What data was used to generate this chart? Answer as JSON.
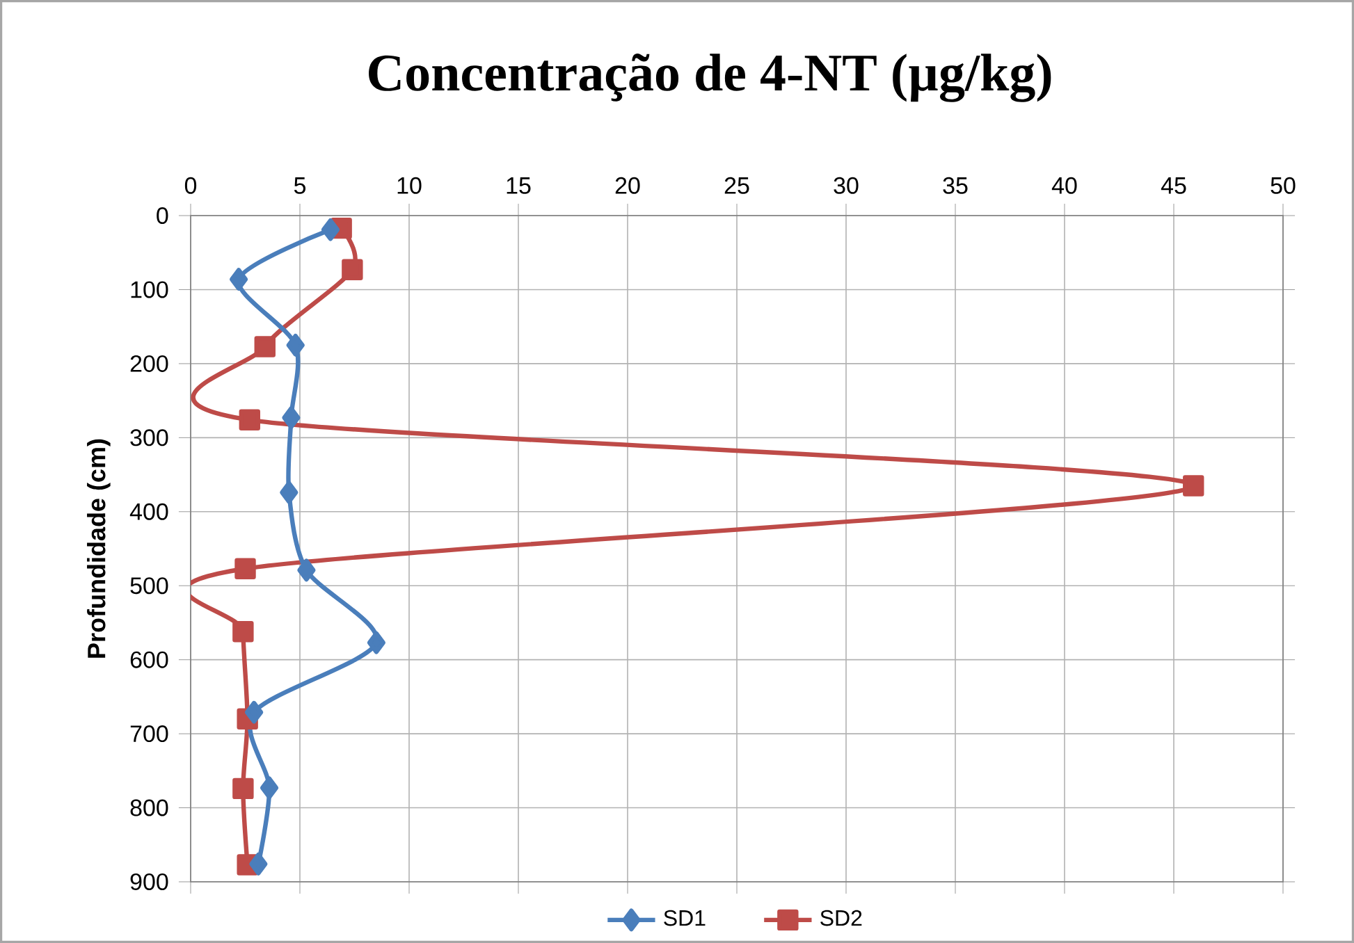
{
  "chart_data": {
    "type": "line",
    "title": "Concentração de 4-NT (µg/kg)",
    "ylabel": "Profundidade (cm)",
    "xlim": [
      0,
      50
    ],
    "xticks": [
      0,
      5,
      10,
      15,
      20,
      25,
      30,
      35,
      40,
      45,
      50
    ],
    "ylim": [
      900,
      0
    ],
    "yticks": [
      0,
      100,
      200,
      300,
      400,
      500,
      600,
      700,
      800,
      900
    ],
    "grid": true,
    "legend": "bottom",
    "series": [
      {
        "name": "SD1",
        "color": "#4a7ebb",
        "marker": "diamond",
        "x": [
          6.4,
          2.2,
          4.8,
          4.6,
          4.5,
          5.3,
          8.5,
          2.9,
          3.6,
          3.1
        ],
        "values": [
          19,
          86,
          175,
          273,
          374,
          479,
          577,
          671,
          773,
          876
        ]
      },
      {
        "name": "SD2",
        "color": "#be4b48",
        "marker": "square",
        "x": [
          6.9,
          7.4,
          3.4,
          2.7,
          45.9,
          2.5,
          2.4,
          2.6,
          2.4,
          2.6
        ],
        "values": [
          17,
          73,
          177,
          276,
          365,
          477,
          562,
          680,
          774,
          877
        ]
      }
    ]
  }
}
